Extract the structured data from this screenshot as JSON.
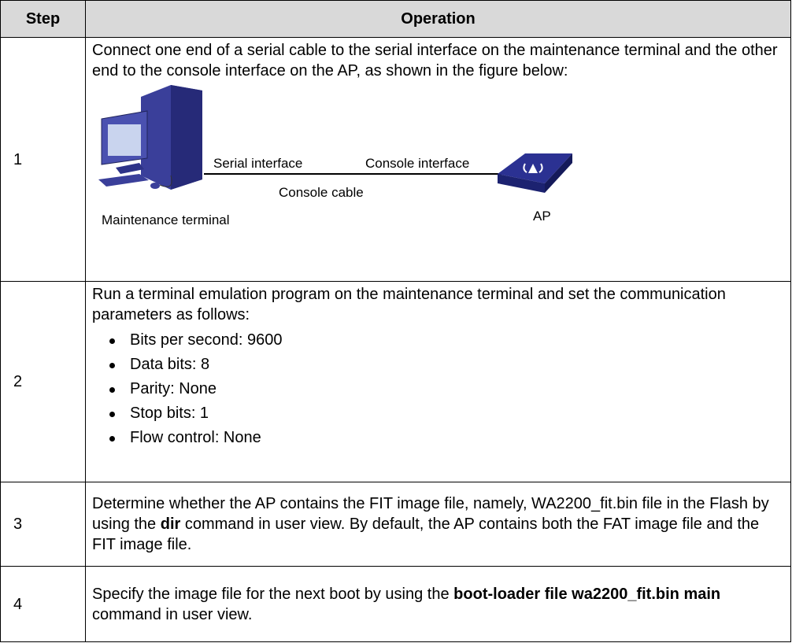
{
  "table": {
    "header": [
      "Step",
      "Operation"
    ],
    "rows": [
      {
        "step": "1",
        "text": "Connect one end of a serial cable to the serial interface on the maintenance terminal and the other end to the console interface on the AP, as shown in the figure below:",
        "figure": {
          "serial_interface": "Serial interface",
          "console_interface": "Console interface",
          "console_cable": "Console cable",
          "terminal": "Maintenance terminal",
          "ap": "AP"
        }
      },
      {
        "step": "2",
        "text": "Run a terminal emulation program on the maintenance terminal and set the communication parameters as follows:",
        "items": [
          "Bits per second: 9600",
          "Data bits: 8",
          "Parity: None",
          "Stop bits: 1",
          "Flow control: None"
        ]
      },
      {
        "step": "3",
        "before": "Determine whether the AP contains the FIT image file, namely, WA2200_fit.bin file in the Flash by using the ",
        "bold": "dir",
        "after": " command in user view. By default, the AP contains both the FAT image file and the FIT image file."
      },
      {
        "step": "4",
        "before": "Specify the image file for the next boot by using the ",
        "bold": "boot-loader file wa2200_fit.bin main",
        "after": " command in user view."
      }
    ]
  }
}
